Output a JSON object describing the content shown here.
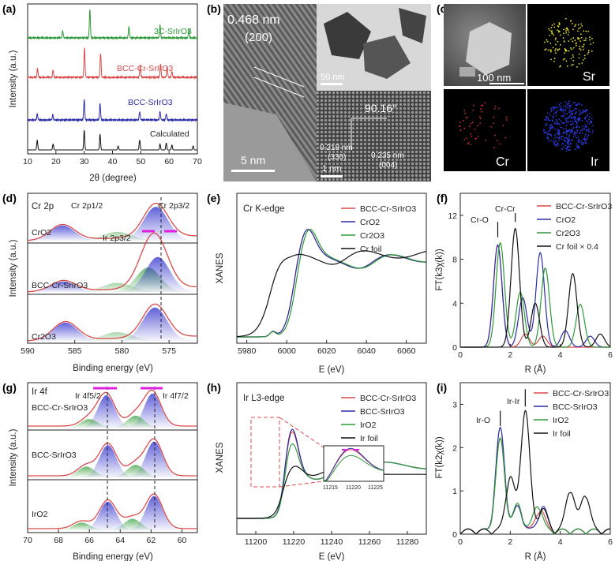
{
  "panels": {
    "a": {
      "label": "(a)"
    },
    "b": {
      "label": "(b)",
      "d_main": "0.468 nm",
      "plane_main": "(200)",
      "scale_main": "5 nm",
      "scale_top": "50 nm",
      "angle": "90.16°",
      "d1": "0.218 nm",
      "p1": "(330)",
      "d2": "0.235 nm",
      "p2": "(004)",
      "scale_bot": "1 nm"
    },
    "c": {
      "label": "(c)",
      "scale": "100 nm",
      "maps": [
        "Sr",
        "Cr",
        "Ir"
      ]
    },
    "d": {
      "label": "(d)",
      "core": "Cr 2p",
      "p12": "Cr 2p1/2",
      "p32": "Cr 2p3/2",
      "ir_peak": "Ir 2p3/2",
      "samples": [
        "CrO2",
        "BCC-Cr-SrIrO3",
        "Cr2O3"
      ]
    },
    "e": {
      "label": "(e)",
      "edge": "Cr K-edge"
    },
    "f": {
      "label": "(f)",
      "ann1": "Cr-O",
      "ann2": "Cr-Cr"
    },
    "g": {
      "label": "(g)",
      "core": "Ir 4f",
      "p52": "Ir 4f5/2",
      "p72": "Ir 4f7/2",
      "samples": [
        "BCC-Cr-SrIrO3",
        "BCC-SrIrO3",
        "IrO2"
      ]
    },
    "h": {
      "label": "(h)",
      "edge": "Ir L3-edge",
      "inset_ticks": [
        "11215",
        "11220",
        "11225"
      ]
    },
    "i": {
      "label": "(i)",
      "ann1": "Ir-O",
      "ann2": "Ir-Ir"
    }
  },
  "colors": {
    "red": "#d94a4a",
    "green": "#2e9a3a",
    "blue": "#2b2ba8",
    "black": "#111111",
    "magenta": "#e020e0"
  },
  "chart_data": [
    {
      "id": "a",
      "type": "line",
      "xlabel": "2θ (degree)",
      "ylabel": "Intensity (a.u.)",
      "xlim": [
        10,
        70
      ],
      "xticks": [
        10,
        20,
        30,
        40,
        50,
        60,
        70
      ],
      "series": [
        {
          "name": "3C-SrIrO3",
          "color": "#2e9a3a",
          "peaks": [
            [
              22.4,
              0.25
            ],
            [
              32.0,
              1.0
            ],
            [
              45.8,
              0.4
            ],
            [
              56.8,
              0.45
            ],
            [
              67.0,
              0.3
            ]
          ]
        },
        {
          "name": "BCC-Cr-SrIrO3",
          "color": "#d94a4a",
          "peaks": [
            [
              13.5,
              0.3
            ],
            [
              19.0,
              0.25
            ],
            [
              30.1,
              1.0
            ],
            [
              35.8,
              0.8
            ],
            [
              49.8,
              0.4
            ],
            [
              57.0,
              0.45
            ],
            [
              59.3,
              0.35
            ],
            [
              61.0,
              0.2
            ]
          ]
        },
        {
          "name": "BCC-SrIrO3",
          "color": "#2b2ba8",
          "peaks": [
            [
              13.4,
              0.3
            ],
            [
              18.9,
              0.25
            ],
            [
              30.0,
              1.0
            ],
            [
              35.6,
              0.8
            ],
            [
              49.6,
              0.4
            ],
            [
              56.8,
              0.4
            ],
            [
              59.0,
              0.3
            ]
          ]
        },
        {
          "name": "Calculated",
          "color": "#111111",
          "peaks": [
            [
              13.4,
              0.5
            ],
            [
              19.0,
              0.3
            ],
            [
              30.0,
              1.0
            ],
            [
              35.6,
              0.8
            ],
            [
              42.0,
              0.2
            ],
            [
              49.6,
              0.5
            ],
            [
              56.8,
              0.3
            ],
            [
              59.0,
              0.35
            ],
            [
              61.0,
              0.25
            ],
            [
              68.5,
              0.2
            ]
          ]
        }
      ]
    },
    {
      "id": "d",
      "type": "line",
      "xlabel": "Binding energy (eV)",
      "ylabel": "Intensity (a.u.)",
      "xlim": [
        590,
        572
      ],
      "xticks": [
        590,
        585,
        580,
        575
      ],
      "series": [
        {
          "name": "CrO2",
          "peaks": [
            [
              586.3,
              0.45
            ],
            [
              576.4,
              1.0
            ]
          ]
        },
        {
          "name": "BCC-Cr-SrIrO3",
          "peaks": [
            [
              586.2,
              0.3
            ],
            [
              577.2,
              0.7
            ],
            [
              576.2,
              1.0
            ]
          ]
        },
        {
          "name": "Cr2O3",
          "peaks": [
            [
              586.0,
              0.55
            ],
            [
              576.5,
              1.0
            ]
          ]
        }
      ]
    },
    {
      "id": "e",
      "type": "line",
      "xlabel": "E (eV)",
      "ylabel": "XANES",
      "xlim": [
        5975,
        6070
      ],
      "xticks": [
        5980,
        6000,
        6020,
        6040,
        6060
      ],
      "series": [
        {
          "name": "BCC-Cr-SrIrO3",
          "color": "#d94a4a"
        },
        {
          "name": "CrO2",
          "color": "#2b2ba8"
        },
        {
          "name": "Cr2O3",
          "color": "#2e9a3a"
        },
        {
          "name": "Cr foil",
          "color": "#111111"
        }
      ]
    },
    {
      "id": "f",
      "type": "line",
      "xlabel": "R (Å)",
      "ylabel": "FT(k3χ(k))",
      "xlim": [
        0,
        6
      ],
      "ylim": [
        0,
        14
      ],
      "xticks": [
        0,
        2,
        4,
        6
      ],
      "yticks": [
        0,
        4,
        8,
        12
      ],
      "series": [
        {
          "name": "BCC-Cr-SrIrO3",
          "color": "#d94a4a",
          "peaks": [
            [
              1.5,
              9.3
            ],
            [
              2.6,
              1.2
            ],
            [
              3.3,
              1.0
            ]
          ]
        },
        {
          "name": "CrO2",
          "color": "#2b2ba8",
          "peaks": [
            [
              1.5,
              9.3
            ],
            [
              2.5,
              4.5
            ],
            [
              3.2,
              8.6
            ],
            [
              4.2,
              1.5
            ],
            [
              5.2,
              1.0
            ]
          ]
        },
        {
          "name": "Cr2O3",
          "color": "#2e9a3a",
          "peaks": [
            [
              1.6,
              9.5
            ],
            [
              2.4,
              5.0
            ],
            [
              3.4,
              7.2
            ],
            [
              4.8,
              3.9
            ]
          ]
        },
        {
          "name": "Cr foil × 0.4",
          "color": "#111111",
          "peaks": [
            [
              2.2,
              10.8
            ],
            [
              3.0,
              4.0
            ],
            [
              4.5,
              6.7
            ],
            [
              5.6,
              1.2
            ]
          ]
        }
      ]
    },
    {
      "id": "g",
      "type": "line",
      "xlabel": "Binding energy (eV)",
      "ylabel": "Intensity (a.u.)",
      "xlim": [
        70,
        59
      ],
      "xticks": [
        70,
        68,
        66,
        64,
        62,
        60
      ],
      "series": [
        {
          "name": "BCC-Cr-SrIrO3",
          "peaks": [
            [
              64.9,
              0.95
            ],
            [
              61.9,
              1.0
            ],
            [
              66.0,
              0.25
            ],
            [
              63.0,
              0.35
            ]
          ]
        },
        {
          "name": "BCC-SrIrO3",
          "peaks": [
            [
              64.8,
              0.9
            ],
            [
              61.8,
              1.0
            ],
            [
              66.2,
              0.3
            ],
            [
              63.0,
              0.35
            ]
          ]
        },
        {
          "name": "IrO2",
          "peaks": [
            [
              64.8,
              0.75
            ],
            [
              61.8,
              0.9
            ],
            [
              66.5,
              0.2
            ],
            [
              63.2,
              0.3
            ]
          ]
        }
      ]
    },
    {
      "id": "h",
      "type": "line",
      "xlabel": "E (eV)",
      "ylabel": "XANES",
      "xlim": [
        11190,
        11290
      ],
      "xticks": [
        11200,
        11220,
        11240,
        11260,
        11280
      ],
      "series": [
        {
          "name": "BCC-Cr-SrIrO3",
          "color": "#d94a4a",
          "white_line": 1.7
        },
        {
          "name": "BCC-SrIrO3",
          "color": "#2b2ba8",
          "white_line": 1.75
        },
        {
          "name": "IrO2",
          "color": "#2e9a3a",
          "white_line": 1.45
        },
        {
          "name": "Ir foil",
          "color": "#111111",
          "white_line": 1.1
        }
      ]
    },
    {
      "id": "i",
      "type": "line",
      "xlabel": "R (Å)",
      "ylabel": "FT(k2χ(k))",
      "xlim": [
        0,
        6
      ],
      "ylim": [
        0,
        3.5
      ],
      "xticks": [
        0,
        2,
        4,
        6
      ],
      "yticks": [
        0,
        1,
        2,
        3
      ],
      "series": [
        {
          "name": "BCC-Cr-SrIrO3",
          "color": "#d94a4a",
          "peaks": [
            [
              1.6,
              2.1
            ],
            [
              2.3,
              0.6
            ],
            [
              3.2,
              0.5
            ]
          ]
        },
        {
          "name": "BCC-SrIrO3",
          "color": "#2b2ba8",
          "peaks": [
            [
              1.6,
              2.35
            ],
            [
              2.3,
              0.55
            ],
            [
              3.3,
              0.55
            ]
          ]
        },
        {
          "name": "IrO2",
          "color": "#2e9a3a",
          "peaks": [
            [
              1.6,
              2.1
            ],
            [
              2.3,
              0.6
            ],
            [
              3.1,
              0.6
            ]
          ]
        },
        {
          "name": "Ir foil",
          "color": "#111111",
          "peaks": [
            [
              2.6,
              2.8
            ],
            [
              2.0,
              1.25
            ],
            [
              3.3,
              0.5
            ],
            [
              4.4,
              0.95
            ],
            [
              5.0,
              0.85
            ]
          ]
        }
      ]
    }
  ]
}
